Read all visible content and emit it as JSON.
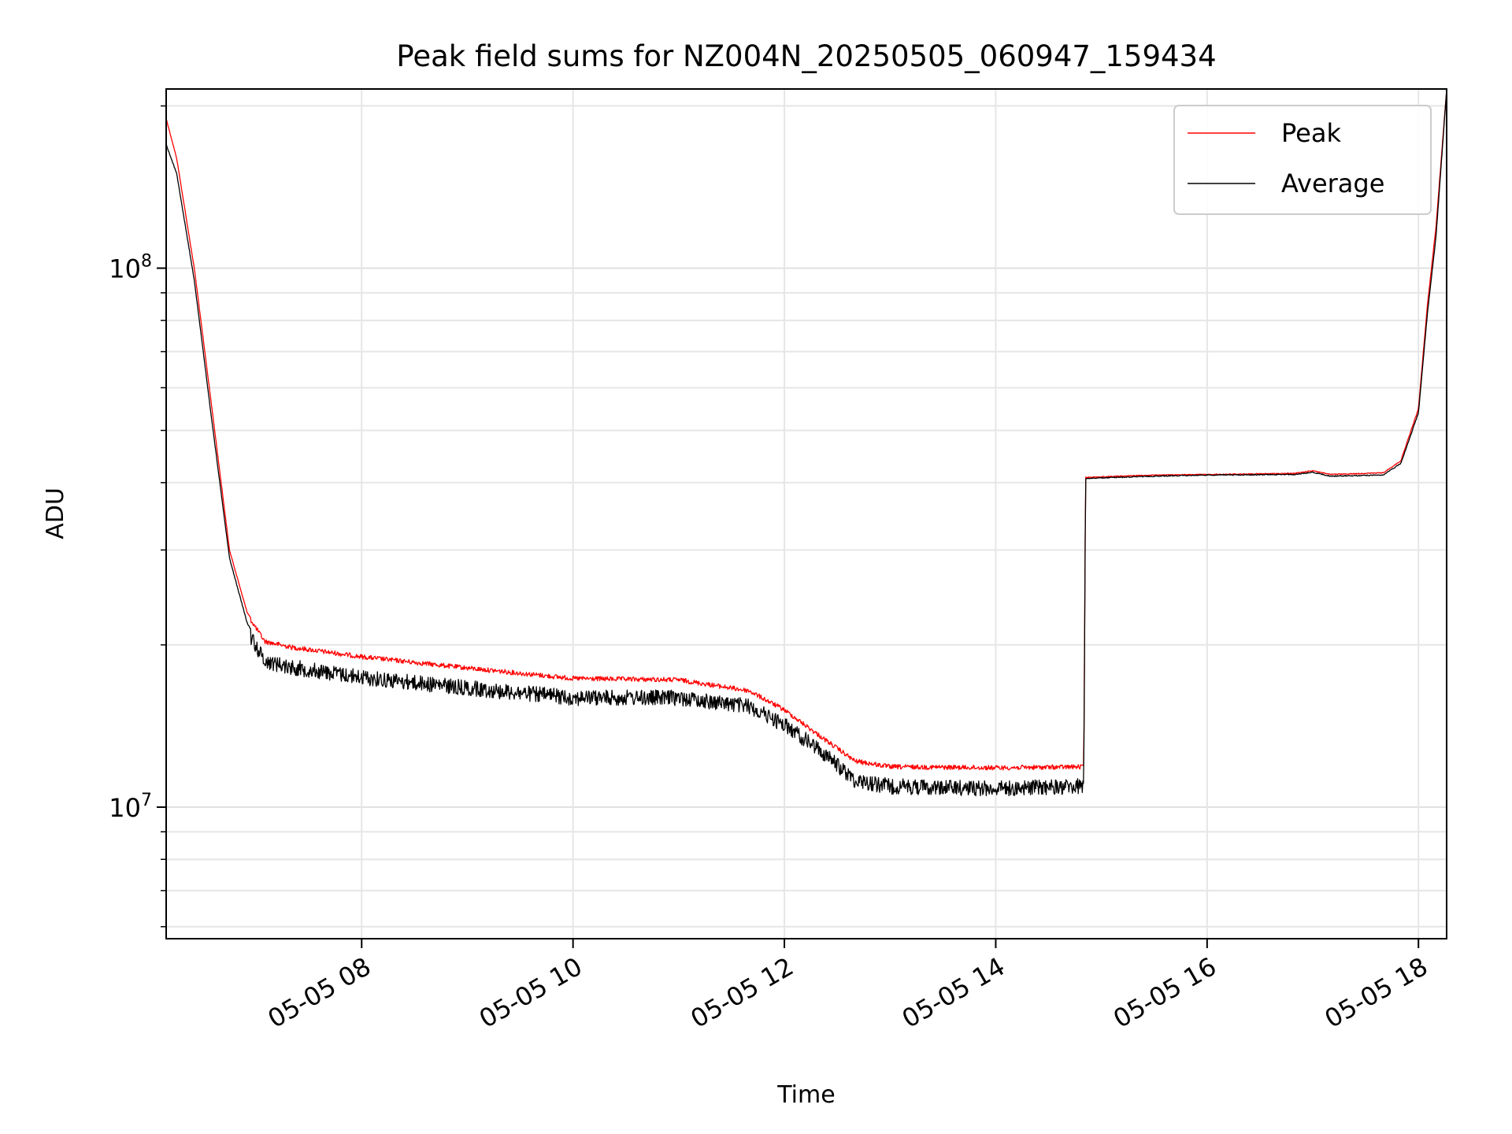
{
  "chart_data": {
    "type": "line",
    "title": "Peak field sums for NZ004N_20250505_060947_159434",
    "xlabel": "Time",
    "ylabel": "ADU",
    "yscale": "log",
    "grid": true,
    "legend_position": "top-right",
    "xlim": [
      "2025-05-05 06:09",
      "2025-05-05 18:16"
    ],
    "ylim": [
      5700000,
      215000000
    ],
    "x_ticks": [
      {
        "value": "2025-05-05 08:00",
        "label": "05-05 08"
      },
      {
        "value": "2025-05-05 10:00",
        "label": "05-05 10"
      },
      {
        "value": "2025-05-05 12:00",
        "label": "05-05 12"
      },
      {
        "value": "2025-05-05 14:00",
        "label": "05-05 14"
      },
      {
        "value": "2025-05-05 16:00",
        "label": "05-05 16"
      },
      {
        "value": "2025-05-05 18:00",
        "label": "05-05 18"
      }
    ],
    "y_ticks": [
      {
        "value": 10000000,
        "base": "10",
        "exp": "7"
      },
      {
        "value": 100000000,
        "base": "10",
        "exp": "8"
      }
    ],
    "series": [
      {
        "name": "Peak",
        "color": "#ff0000",
        "x": [
          "2025-05-05 06:09",
          "2025-05-05 06:15",
          "2025-05-05 06:25",
          "2025-05-05 06:35",
          "2025-05-05 06:45",
          "2025-05-05 06:55",
          "2025-05-05 07:05",
          "2025-05-05 07:20",
          "2025-05-05 07:40",
          "2025-05-05 08:00",
          "2025-05-05 09:00",
          "2025-05-05 10:00",
          "2025-05-05 11:00",
          "2025-05-05 11:40",
          "2025-05-05 12:00",
          "2025-05-05 12:20",
          "2025-05-05 12:40",
          "2025-05-05 13:00",
          "2025-05-05 14:00",
          "2025-05-05 14:50",
          "2025-05-05 14:51",
          "2025-05-05 15:30",
          "2025-05-05 16:00",
          "2025-05-05 16:50",
          "2025-05-05 17:00",
          "2025-05-05 17:10",
          "2025-05-05 17:40",
          "2025-05-05 17:50",
          "2025-05-05 18:00",
          "2025-05-05 18:05",
          "2025-05-05 18:10",
          "2025-05-05 18:16"
        ],
        "values": [
          190000000,
          160000000,
          100000000,
          55000000,
          30000000,
          23000000,
          20500000,
          20000000,
          19600000,
          19200000,
          18300000,
          17500000,
          17400000,
          16600000,
          15300000,
          13700000,
          12300000,
          12000000,
          11950000,
          12000000,
          41000000,
          41400000,
          41500000,
          41700000,
          42200000,
          41500000,
          41800000,
          44000000,
          55000000,
          85000000,
          120000000,
          215000000
        ],
        "noise": 0.02
      },
      {
        "name": "Average",
        "color": "#000000",
        "x": [
          "2025-05-05 06:09",
          "2025-05-05 06:15",
          "2025-05-05 06:25",
          "2025-05-05 06:35",
          "2025-05-05 06:45",
          "2025-05-05 06:55",
          "2025-05-05 07:05",
          "2025-05-05 07:20",
          "2025-05-05 07:40",
          "2025-05-05 08:00",
          "2025-05-05 09:00",
          "2025-05-05 10:00",
          "2025-05-05 11:00",
          "2025-05-05 11:40",
          "2025-05-05 12:00",
          "2025-05-05 12:20",
          "2025-05-05 12:40",
          "2025-05-05 13:00",
          "2025-05-05 14:00",
          "2025-05-05 14:50",
          "2025-05-05 14:51",
          "2025-05-05 15:30",
          "2025-05-05 16:00",
          "2025-05-05 16:50",
          "2025-05-05 17:00",
          "2025-05-05 17:10",
          "2025-05-05 17:40",
          "2025-05-05 17:50",
          "2025-05-05 18:00",
          "2025-05-05 18:05",
          "2025-05-05 18:10",
          "2025-05-05 18:16"
        ],
        "values": [
          170000000,
          150000000,
          95000000,
          52000000,
          29000000,
          22000000,
          19300000,
          18800000,
          18400000,
          18000000,
          17200000,
          16500000,
          16500000,
          15900000,
          14700000,
          13200000,
          11600000,
          11300000,
          11200000,
          11300000,
          40800000,
          41200000,
          41400000,
          41500000,
          41900000,
          41200000,
          41400000,
          43500000,
          54000000,
          82000000,
          115000000,
          215000000
        ],
        "noise": 0.065
      }
    ]
  }
}
